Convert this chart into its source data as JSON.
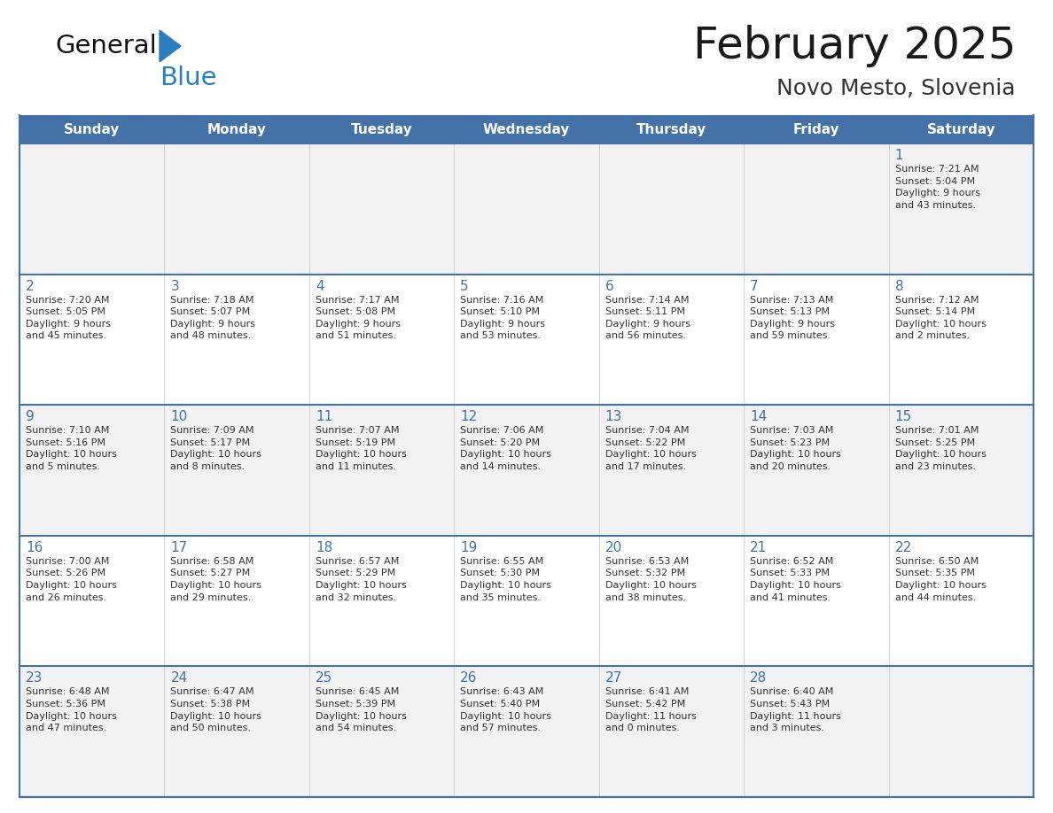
{
  "title": "February 2025",
  "subtitle": "Novo Mesto, Slovenia",
  "header_color": "#4472A8",
  "header_text_color": "#FFFFFF",
  "days_of_week": [
    "Sunday",
    "Monday",
    "Tuesday",
    "Wednesday",
    "Thursday",
    "Friday",
    "Saturday"
  ],
  "row_bg_odd": "#F2F2F2",
  "row_bg_even": "#FFFFFF",
  "border_color": "#4472A8",
  "day_number_color": "#4472A8",
  "text_color": "#333333",
  "logo_general_color": "#111111",
  "logo_blue_color": "#2A7FC1",
  "logo_triangle_color": "#2A7FC1",
  "calendar": [
    [
      {
        "day": null,
        "info": ""
      },
      {
        "day": null,
        "info": ""
      },
      {
        "day": null,
        "info": ""
      },
      {
        "day": null,
        "info": ""
      },
      {
        "day": null,
        "info": ""
      },
      {
        "day": null,
        "info": ""
      },
      {
        "day": 1,
        "info": "Sunrise: 7:21 AM\nSunset: 5:04 PM\nDaylight: 9 hours\nand 43 minutes."
      }
    ],
    [
      {
        "day": 2,
        "info": "Sunrise: 7:20 AM\nSunset: 5:05 PM\nDaylight: 9 hours\nand 45 minutes."
      },
      {
        "day": 3,
        "info": "Sunrise: 7:18 AM\nSunset: 5:07 PM\nDaylight: 9 hours\nand 48 minutes."
      },
      {
        "day": 4,
        "info": "Sunrise: 7:17 AM\nSunset: 5:08 PM\nDaylight: 9 hours\nand 51 minutes."
      },
      {
        "day": 5,
        "info": "Sunrise: 7:16 AM\nSunset: 5:10 PM\nDaylight: 9 hours\nand 53 minutes."
      },
      {
        "day": 6,
        "info": "Sunrise: 7:14 AM\nSunset: 5:11 PM\nDaylight: 9 hours\nand 56 minutes."
      },
      {
        "day": 7,
        "info": "Sunrise: 7:13 AM\nSunset: 5:13 PM\nDaylight: 9 hours\nand 59 minutes."
      },
      {
        "day": 8,
        "info": "Sunrise: 7:12 AM\nSunset: 5:14 PM\nDaylight: 10 hours\nand 2 minutes."
      }
    ],
    [
      {
        "day": 9,
        "info": "Sunrise: 7:10 AM\nSunset: 5:16 PM\nDaylight: 10 hours\nand 5 minutes."
      },
      {
        "day": 10,
        "info": "Sunrise: 7:09 AM\nSunset: 5:17 PM\nDaylight: 10 hours\nand 8 minutes."
      },
      {
        "day": 11,
        "info": "Sunrise: 7:07 AM\nSunset: 5:19 PM\nDaylight: 10 hours\nand 11 minutes."
      },
      {
        "day": 12,
        "info": "Sunrise: 7:06 AM\nSunset: 5:20 PM\nDaylight: 10 hours\nand 14 minutes."
      },
      {
        "day": 13,
        "info": "Sunrise: 7:04 AM\nSunset: 5:22 PM\nDaylight: 10 hours\nand 17 minutes."
      },
      {
        "day": 14,
        "info": "Sunrise: 7:03 AM\nSunset: 5:23 PM\nDaylight: 10 hours\nand 20 minutes."
      },
      {
        "day": 15,
        "info": "Sunrise: 7:01 AM\nSunset: 5:25 PM\nDaylight: 10 hours\nand 23 minutes."
      }
    ],
    [
      {
        "day": 16,
        "info": "Sunrise: 7:00 AM\nSunset: 5:26 PM\nDaylight: 10 hours\nand 26 minutes."
      },
      {
        "day": 17,
        "info": "Sunrise: 6:58 AM\nSunset: 5:27 PM\nDaylight: 10 hours\nand 29 minutes."
      },
      {
        "day": 18,
        "info": "Sunrise: 6:57 AM\nSunset: 5:29 PM\nDaylight: 10 hours\nand 32 minutes."
      },
      {
        "day": 19,
        "info": "Sunrise: 6:55 AM\nSunset: 5:30 PM\nDaylight: 10 hours\nand 35 minutes."
      },
      {
        "day": 20,
        "info": "Sunrise: 6:53 AM\nSunset: 5:32 PM\nDaylight: 10 hours\nand 38 minutes."
      },
      {
        "day": 21,
        "info": "Sunrise: 6:52 AM\nSunset: 5:33 PM\nDaylight: 10 hours\nand 41 minutes."
      },
      {
        "day": 22,
        "info": "Sunrise: 6:50 AM\nSunset: 5:35 PM\nDaylight: 10 hours\nand 44 minutes."
      }
    ],
    [
      {
        "day": 23,
        "info": "Sunrise: 6:48 AM\nSunset: 5:36 PM\nDaylight: 10 hours\nand 47 minutes."
      },
      {
        "day": 24,
        "info": "Sunrise: 6:47 AM\nSunset: 5:38 PM\nDaylight: 10 hours\nand 50 minutes."
      },
      {
        "day": 25,
        "info": "Sunrise: 6:45 AM\nSunset: 5:39 PM\nDaylight: 10 hours\nand 54 minutes."
      },
      {
        "day": 26,
        "info": "Sunrise: 6:43 AM\nSunset: 5:40 PM\nDaylight: 10 hours\nand 57 minutes."
      },
      {
        "day": 27,
        "info": "Sunrise: 6:41 AM\nSunset: 5:42 PM\nDaylight: 11 hours\nand 0 minutes."
      },
      {
        "day": 28,
        "info": "Sunrise: 6:40 AM\nSunset: 5:43 PM\nDaylight: 11 hours\nand 3 minutes."
      },
      {
        "day": null,
        "info": ""
      }
    ]
  ]
}
